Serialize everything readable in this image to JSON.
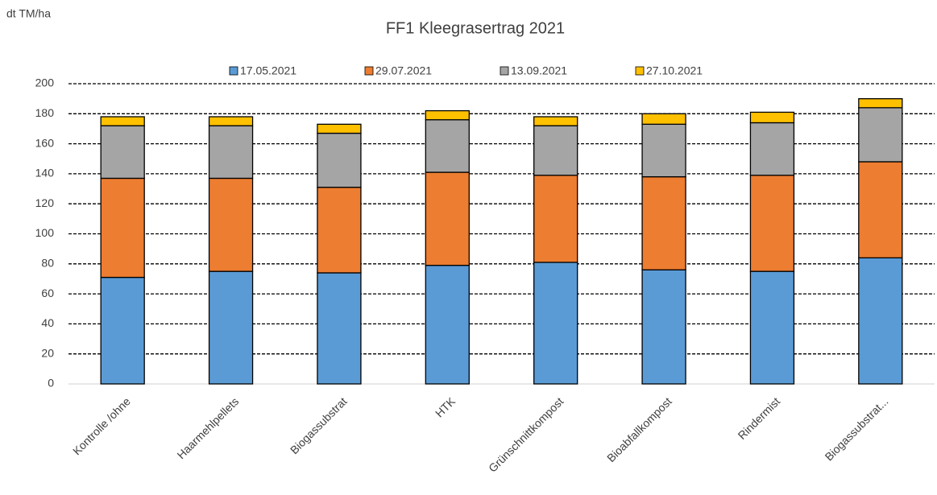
{
  "chart_data": {
    "type": "stacked_bar",
    "title": "FF1 Kleegrasertrag 2021",
    "y_label": "dt TM/ha",
    "categories": [
      "Kontrolle /ohne",
      "Haarmehlpellets",
      "Biogassubstrat",
      "HTK",
      "Grünschnittkompost",
      "Bioabfallkompost",
      "Rindermist",
      "Biogassubstrat..."
    ],
    "series": [
      {
        "name": "17.05.2021",
        "color": "#5b9bd5",
        "values": [
          71,
          75,
          74,
          79,
          81,
          76,
          75,
          84
        ]
      },
      {
        "name": "29.07.2021",
        "color": "#ed7d31",
        "values": [
          66,
          62,
          57,
          62,
          58,
          62,
          64,
          64
        ]
      },
      {
        "name": "13.09.2021",
        "color": "#a5a5a5",
        "values": [
          35,
          35,
          36,
          35,
          33,
          35,
          35,
          36
        ]
      },
      {
        "name": "27.10.2021",
        "color": "#ffc000",
        "values": [
          6,
          6,
          6,
          6,
          6,
          7,
          7,
          6
        ]
      }
    ],
    "ylim": [
      0,
      200
    ],
    "yticks": [
      0,
      20,
      40,
      60,
      80,
      100,
      120,
      140,
      160,
      180,
      200
    ],
    "grid": true,
    "legend": "top"
  }
}
